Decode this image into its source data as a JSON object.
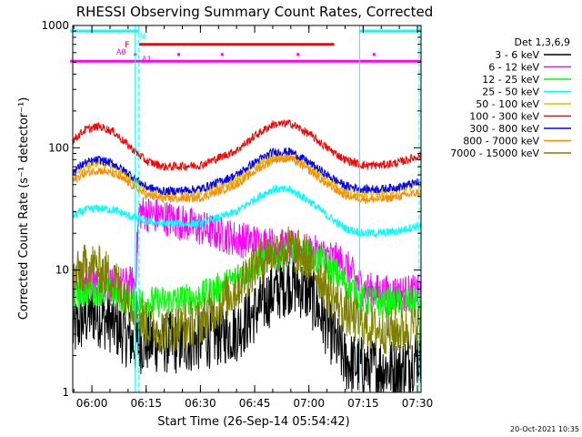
{
  "chart_data": {
    "type": "line",
    "title": "RHESSI Observing Summary Count Rates, Corrected",
    "ylabel": "Corrected Count Rate (s⁻¹ detector⁻¹)",
    "xlabel": "Start Time (26-Sep-14 05:54:42)",
    "y_scale": "log",
    "ylim": [
      1,
      1000
    ],
    "xlim": [
      "05:54:42",
      "07:31:00"
    ],
    "y_ticks": [
      {
        "value": 1,
        "label": "1"
      },
      {
        "value": 10,
        "label": "10"
      },
      {
        "value": 100,
        "label": "100"
      },
      {
        "value": 1000,
        "label": "1000"
      }
    ],
    "x_ticks": [
      {
        "value": "06:00",
        "label": "06:00"
      },
      {
        "value": "06:15",
        "label": "06:15"
      },
      {
        "value": "06:30",
        "label": "06:30"
      },
      {
        "value": "06:45",
        "label": "06:45"
      },
      {
        "value": "07:00",
        "label": "07:00"
      },
      {
        "value": "07:15",
        "label": "07:15"
      },
      {
        "value": "07:30",
        "label": "07:30"
      }
    ],
    "legend_title": "Det 1,3,6,9",
    "legend_position": "right",
    "series": [
      {
        "name": "3 - 6 keV",
        "color": "#000000",
        "x": [
          "05:54",
          "05:58",
          "06:00",
          "06:05",
          "06:10",
          "06:12",
          "06:16",
          "06:25",
          "06:40",
          "06:45",
          "06:50",
          "06:55",
          "07:00",
          "07:05",
          "07:10",
          "07:15",
          "07:20",
          "07:25",
          "07:30"
        ],
        "values": [
          3.0,
          4.0,
          4.5,
          3.8,
          2.8,
          2.5,
          2.6,
          2.5,
          3.2,
          4.5,
          6.5,
          8.0,
          6.5,
          3.5,
          1.8,
          1.6,
          1.6,
          1.5,
          2.0
        ]
      },
      {
        "name": "6 - 12 keV",
        "color": "#ff00ff",
        "x": [
          "05:54",
          "06:00",
          "06:05",
          "06:10",
          "06:12",
          "06:13",
          "06:20",
          "06:30",
          "06:40",
          "06:50",
          "06:55",
          "07:00",
          "07:05",
          "07:10",
          "07:15",
          "07:20",
          "07:25",
          "07:30"
        ],
        "values": [
          7.5,
          8.0,
          7.8,
          7.5,
          8.0,
          30,
          27,
          22,
          18,
          16,
          15,
          14,
          13,
          11,
          7.0,
          6.5,
          6.5,
          6.5
        ]
      },
      {
        "name": "12 - 25 keV",
        "color": "#00ff00",
        "x": [
          "05:54",
          "06:00",
          "06:05",
          "06:10",
          "06:12",
          "06:20",
          "06:30",
          "06:40",
          "06:45",
          "06:50",
          "06:55",
          "07:00",
          "07:05",
          "07:10",
          "07:15",
          "07:20",
          "07:25",
          "07:30"
        ],
        "values": [
          6.0,
          7.0,
          6.5,
          5.8,
          5.5,
          5.5,
          6.0,
          8.5,
          11,
          13,
          14,
          13,
          11,
          8.0,
          5.8,
          5.5,
          5.5,
          5.5
        ]
      },
      {
        "name": "25 - 50 keV",
        "color": "#00ffff",
        "x": [
          "05:54",
          "05:58",
          "06:02",
          "06:06",
          "06:10",
          "06:15",
          "06:20",
          "06:30",
          "06:40",
          "06:45",
          "06:50",
          "06:55",
          "07:00",
          "07:05",
          "07:10",
          "07:15",
          "07:20",
          "07:25",
          "07:30"
        ],
        "values": [
          27,
          31,
          32,
          31,
          28,
          25,
          24,
          24,
          30,
          38,
          46,
          45,
          37,
          28,
          22,
          20,
          20,
          21,
          23
        ]
      },
      {
        "name": "50 - 100 keV",
        "color": "#e6c000",
        "x": [
          "05:54",
          "05:58",
          "06:02",
          "06:06",
          "06:10",
          "06:15",
          "06:20",
          "06:30",
          "06:40",
          "06:45",
          "06:50",
          "06:55",
          "07:00",
          "07:05",
          "07:10",
          "07:15",
          "07:20",
          "07:25",
          "07:30"
        ],
        "values": [
          58,
          70,
          76,
          70,
          58,
          45,
          41,
          43,
          55,
          70,
          84,
          85,
          70,
          55,
          45,
          42,
          43,
          45,
          50
        ]
      },
      {
        "name": "100 - 300 keV",
        "color": "#ff0000",
        "x": [
          "05:54",
          "05:58",
          "06:02",
          "06:06",
          "06:10",
          "06:15",
          "06:20",
          "06:30",
          "06:40",
          "06:45",
          "06:50",
          "06:55",
          "07:00",
          "07:05",
          "07:10",
          "07:15",
          "07:20",
          "07:25",
          "07:30"
        ],
        "values": [
          110,
          140,
          150,
          135,
          105,
          78,
          70,
          72,
          95,
          125,
          155,
          158,
          130,
          100,
          80,
          72,
          72,
          76,
          85
        ]
      },
      {
        "name": "300 - 800 keV",
        "color": "#0000ff",
        "x": [
          "05:54",
          "05:58",
          "06:02",
          "06:06",
          "06:10",
          "06:15",
          "06:20",
          "06:30",
          "06:40",
          "06:45",
          "06:50",
          "06:55",
          "07:00",
          "07:05",
          "07:10",
          "07:15",
          "07:20",
          "07:25",
          "07:30"
        ],
        "values": [
          62,
          75,
          80,
          74,
          62,
          48,
          44,
          46,
          60,
          76,
          92,
          93,
          76,
          60,
          49,
          46,
          46,
          48,
          52
        ]
      },
      {
        "name": "800 - 7000 keV",
        "color": "#ff8c00",
        "x": [
          "05:54",
          "05:58",
          "06:02",
          "06:06",
          "06:10",
          "06:15",
          "06:20",
          "06:30",
          "06:40",
          "06:45",
          "06:50",
          "06:55",
          "07:00",
          "07:05",
          "07:10",
          "07:15",
          "07:20",
          "07:25",
          "07:30"
        ],
        "values": [
          52,
          62,
          66,
          61,
          52,
          41,
          38,
          39,
          50,
          64,
          80,
          82,
          66,
          50,
          41,
          38,
          38,
          40,
          43
        ]
      },
      {
        "name": "7000 - 15000 keV",
        "color": "#808000",
        "x": [
          "05:54",
          "05:58",
          "06:00",
          "06:05",
          "06:10",
          "06:15",
          "06:20",
          "06:30",
          "06:40",
          "06:45",
          "06:50",
          "06:55",
          "07:00",
          "07:05",
          "07:10",
          "07:15",
          "07:20",
          "07:25",
          "07:30"
        ],
        "values": [
          8.0,
          10.5,
          11,
          9.0,
          6.0,
          3.5,
          3.2,
          3.8,
          7.0,
          11,
          14.5,
          15,
          12,
          7.0,
          4.5,
          3.5,
          3.2,
          3.2,
          3.5
        ]
      }
    ],
    "flag_annotations": [
      {
        "label": "F",
        "color": "#ff0000"
      },
      {
        "label": "N",
        "color": "#00ffff"
      },
      {
        "label": "A0",
        "color": "#ff00ff"
      },
      {
        "label": "A1",
        "color": "#ff00ff"
      }
    ],
    "flag_bars": [
      {
        "color": "#00ffff",
        "value": 900,
        "start": "05:54",
        "end": "06:13"
      },
      {
        "color": "#00ffff",
        "value": 900,
        "start": "07:14",
        "end": "07:31"
      },
      {
        "color": "#ff0000",
        "value": 700,
        "start": "06:13",
        "end": "07:07"
      },
      {
        "color": "#ff00ff",
        "value": 510,
        "start": "05:54",
        "end": "07:31"
      }
    ],
    "vertical_markers": [
      {
        "time": "05:54:42",
        "color": "#00ffff",
        "style": "solid"
      },
      {
        "time": "06:12:00",
        "color": "#00ffff",
        "style": "solid"
      },
      {
        "time": "06:13:00",
        "color": "#00ffff",
        "style": "dashed"
      },
      {
        "time": "07:14:00",
        "color": "#00ffff",
        "style": "solid"
      },
      {
        "time": "07:30:30",
        "color": "#00ffff",
        "style": "dashed"
      }
    ],
    "timestamp": "20-Oct-2021 10:35"
  }
}
